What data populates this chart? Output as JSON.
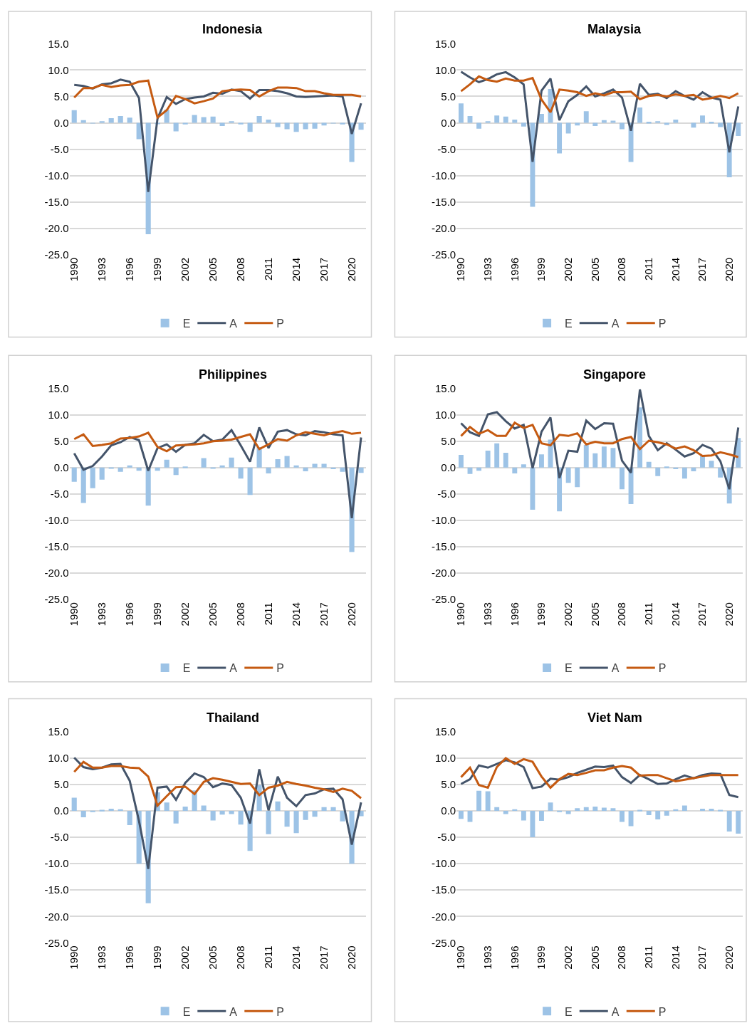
{
  "chart_data": [
    {
      "type": "line",
      "title": "Indonesia",
      "categories": [
        "1990",
        null,
        null,
        "1993",
        null,
        null,
        "1996",
        null,
        null,
        "1999",
        null,
        null,
        "2002",
        null,
        null,
        "2005",
        null,
        null,
        "2008",
        null,
        null,
        "2011",
        null,
        null,
        "2014",
        null,
        null,
        "2017",
        null,
        null,
        "2020",
        null
      ],
      "ylim": [
        -25,
        15
      ],
      "yticks": [
        {
          "value": -25,
          "label": "-25.0"
        },
        {
          "value": -20,
          "label": "-20.0"
        },
        {
          "value": -15,
          "label": "-15.0"
        },
        {
          "value": -10,
          "label": "-10.0"
        },
        {
          "value": -5,
          "label": "-5.0"
        },
        {
          "value": 0,
          "label": "0.0"
        },
        {
          "value": 5,
          "label": "5.0"
        },
        {
          "value": 10,
          "label": "10.0"
        },
        {
          "value": 15,
          "label": "15.0"
        }
      ],
      "grid": "y",
      "legend": "bottom",
      "series": [
        {
          "name": "E",
          "type": "bar",
          "color": "#9dc3e6",
          "values": [
            2.4,
            0.5,
            -0.1,
            0.3,
            0.9,
            1.3,
            1.0,
            -3.1,
            -21.1,
            -0.2,
            2.5,
            -1.6,
            -0.3,
            1.5,
            1.1,
            1.2,
            -0.6,
            0.3,
            -0.3,
            -1.7,
            1.3,
            0.6,
            -0.8,
            -1.2,
            -1.7,
            -1.2,
            -1.1,
            -0.5,
            -0.1,
            -0.3,
            -7.4,
            -1.3
          ]
        },
        {
          "name": "A",
          "color": "#44546a",
          "values": [
            7.2,
            7.0,
            6.5,
            7.3,
            7.5,
            8.2,
            7.8,
            4.7,
            -13.1,
            0.8,
            4.9,
            3.6,
            4.5,
            4.8,
            5.0,
            5.7,
            5.5,
            6.3,
            6.0,
            4.6,
            6.2,
            6.2,
            6.0,
            5.6,
            5.0,
            4.9,
            5.0,
            5.1,
            5.2,
            5.0,
            -2.1,
            3.7
          ]
        },
        {
          "name": "P",
          "color": "#c55a11",
          "values": [
            4.8,
            6.6,
            6.6,
            7.2,
            6.8,
            7.1,
            7.2,
            7.8,
            8.0,
            1.0,
            2.4,
            5.1,
            4.5,
            3.7,
            4.1,
            4.6,
            6.0,
            6.2,
            6.3,
            6.2,
            5.0,
            6.0,
            6.7,
            6.7,
            6.6,
            6.0,
            6.0,
            5.6,
            5.3,
            5.3,
            5.3,
            5.0
          ]
        }
      ]
    },
    {
      "type": "line",
      "title": "Malaysia",
      "categories": [
        "1990",
        null,
        null,
        "1993",
        null,
        null,
        "1996",
        null,
        null,
        "1999",
        null,
        null,
        "2002",
        null,
        null,
        "2005",
        null,
        null,
        "2008",
        null,
        null,
        "2011",
        null,
        null,
        "2014",
        null,
        null,
        "2017",
        null,
        null,
        "2020",
        null
      ],
      "ylim": [
        -25,
        15
      ],
      "yticks": [
        {
          "value": -25,
          "label": "-25.0"
        },
        {
          "value": -20,
          "label": "-20.0"
        },
        {
          "value": -15,
          "label": "-15.0"
        },
        {
          "value": -10,
          "label": "-10.0"
        },
        {
          "value": -5,
          "label": "-5.0"
        },
        {
          "value": 0,
          "label": "0.0"
        },
        {
          "value": 5,
          "label": "5.0"
        },
        {
          "value": 10,
          "label": "10.0"
        },
        {
          "value": 15,
          "label": "15.0"
        }
      ],
      "grid": "y",
      "legend": "bottom",
      "series": [
        {
          "name": "E",
          "type": "bar",
          "color": "#9dc3e6",
          "values": [
            3.7,
            1.3,
            -1.1,
            0.3,
            1.4,
            1.2,
            0.6,
            -0.7,
            -15.9,
            1.7,
            6.4,
            -5.8,
            -2.0,
            -0.5,
            2.2,
            -0.6,
            0.5,
            0.4,
            -1.2,
            -7.4,
            2.9,
            0.2,
            0.3,
            -0.4,
            0.6,
            0.0,
            -0.9,
            1.4,
            0.2,
            -0.8,
            -10.3,
            -2.5
          ]
        },
        {
          "name": "A",
          "color": "#44546a",
          "values": [
            9.7,
            8.6,
            7.7,
            8.3,
            9.2,
            9.6,
            8.6,
            7.3,
            -7.4,
            6.1,
            8.4,
            0.5,
            4.1,
            5.3,
            6.9,
            5.0,
            5.6,
            6.3,
            4.8,
            -1.5,
            7.4,
            5.3,
            5.5,
            4.7,
            6.0,
            5.1,
            4.4,
            5.8,
            4.8,
            4.4,
            -5.6,
            3.1
          ]
        },
        {
          "name": "P",
          "color": "#c55a11",
          "values": [
            6.0,
            7.3,
            8.8,
            8.1,
            7.8,
            8.4,
            8.0,
            8.0,
            8.5,
            4.4,
            2.0,
            6.3,
            6.1,
            5.8,
            5.1,
            5.6,
            5.2,
            5.8,
            5.8,
            5.9,
            4.5,
            5.1,
            5.3,
            5.0,
            5.4,
            5.1,
            5.3,
            4.4,
            4.7,
            5.1,
            4.7,
            5.6
          ]
        }
      ]
    },
    {
      "type": "line",
      "title": "Philippines",
      "categories": [
        "1990",
        null,
        null,
        "1993",
        null,
        null,
        "1996",
        null,
        null,
        "1999",
        null,
        null,
        "2002",
        null,
        null,
        "2005",
        null,
        null,
        "2008",
        null,
        null,
        "2011",
        null,
        null,
        "2014",
        null,
        null,
        "2017",
        null,
        null,
        "2020",
        null
      ],
      "ylim": [
        -25,
        15
      ],
      "yticks": [
        {
          "value": -25,
          "label": "-25.0"
        },
        {
          "value": -20,
          "label": "-20.0"
        },
        {
          "value": -15,
          "label": "-15.0"
        },
        {
          "value": -10,
          "label": "-10.0"
        },
        {
          "value": -5,
          "label": "-5.0"
        },
        {
          "value": 0,
          "label": "0.0"
        },
        {
          "value": 5,
          "label": "5.0"
        },
        {
          "value": 10,
          "label": "10.0"
        },
        {
          "value": 15,
          "label": "15.0"
        }
      ],
      "grid": "y",
      "legend": "bottom",
      "series": [
        {
          "name": "E",
          "type": "bar",
          "color": "#9dc3e6",
          "values": [
            -2.7,
            -6.7,
            -3.9,
            -2.3,
            -0.2,
            -0.8,
            0.4,
            -0.6,
            -7.2,
            -0.6,
            1.5,
            -1.4,
            0.2,
            0.0,
            1.8,
            -0.2,
            0.4,
            1.9,
            -2.1,
            -5.2,
            3.9,
            -1.1,
            1.6,
            2.2,
            0.4,
            -0.7,
            0.7,
            0.7,
            -0.3,
            -0.8,
            -16.0,
            -1.0
          ]
        },
        {
          "name": "A",
          "color": "#44546a",
          "values": [
            2.7,
            -0.4,
            0.3,
            2.1,
            4.2,
            4.8,
            5.8,
            5.2,
            -0.6,
            3.7,
            4.4,
            3.0,
            4.3,
            4.6,
            6.2,
            5.0,
            5.3,
            7.1,
            4.2,
            1.1,
            7.6,
            3.7,
            6.8,
            7.1,
            6.3,
            6.1,
            6.9,
            6.7,
            6.3,
            6.1,
            -9.6,
            5.7
          ]
        },
        {
          "name": "P",
          "color": "#c55a11",
          "values": [
            5.4,
            6.3,
            4.1,
            4.3,
            4.6,
            5.5,
            5.6,
            5.9,
            6.6,
            3.9,
            3.1,
            4.2,
            4.3,
            4.4,
            4.6,
            5.0,
            5.1,
            5.3,
            5.8,
            6.3,
            3.5,
            4.4,
            5.4,
            5.1,
            6.1,
            6.7,
            6.4,
            6.1,
            6.6,
            6.9,
            6.4,
            6.6
          ]
        }
      ]
    },
    {
      "type": "line",
      "title": "Singapore",
      "categories": [
        "1990",
        null,
        null,
        "1993",
        null,
        null,
        "1996",
        null,
        null,
        "1999",
        null,
        null,
        "2002",
        null,
        null,
        "2005",
        null,
        null,
        "2008",
        null,
        null,
        "2011",
        null,
        null,
        "2014",
        null,
        null,
        "2017",
        null,
        null,
        "2020",
        null
      ],
      "ylim": [
        -25,
        15
      ],
      "yticks": [
        {
          "value": -25,
          "label": "-25.0"
        },
        {
          "value": -20,
          "label": "-20.0"
        },
        {
          "value": -15,
          "label": "-15.0"
        },
        {
          "value": -10,
          "label": "-10.0"
        },
        {
          "value": -5,
          "label": "-5.0"
        },
        {
          "value": 0,
          "label": "0.0"
        },
        {
          "value": 5,
          "label": "5.0"
        },
        {
          "value": 10,
          "label": "10.0"
        },
        {
          "value": 15,
          "label": "15.0"
        }
      ],
      "grid": "y",
      "legend": "bottom",
      "series": [
        {
          "name": "E",
          "type": "bar",
          "color": "#9dc3e6",
          "values": [
            2.4,
            -1.2,
            -0.6,
            3.2,
            4.6,
            2.8,
            -1.1,
            0.6,
            -8.0,
            2.5,
            5.3,
            -8.3,
            -2.9,
            -3.7,
            4.3,
            2.7,
            4.0,
            3.7,
            -4.1,
            -6.9,
            11.4,
            1.1,
            -1.6,
            0.2,
            -0.3,
            -2.1,
            -0.7,
            2.3,
            1.3,
            -1.9,
            -6.8,
            5.6
          ]
        },
        {
          "name": "A",
          "color": "#44546a",
          "values": [
            8.4,
            6.7,
            6.0,
            10.1,
            10.5,
            8.8,
            7.4,
            8.1,
            -0.1,
            6.8,
            9.5,
            -2.0,
            3.2,
            3.0,
            8.9,
            7.3,
            8.4,
            8.3,
            1.3,
            -1.0,
            14.8,
            6.0,
            3.3,
            4.6,
            3.4,
            2.1,
            2.7,
            4.3,
            3.6,
            1.2,
            -4.1,
            7.6
          ]
        },
        {
          "name": "P",
          "color": "#c55a11",
          "values": [
            6.0,
            7.7,
            6.4,
            7.1,
            6.0,
            6.0,
            8.5,
            7.5,
            8.1,
            4.6,
            4.2,
            6.2,
            6.0,
            6.5,
            4.4,
            4.9,
            4.6,
            4.6,
            5.4,
            5.8,
            3.5,
            5.1,
            4.8,
            4.4,
            3.6,
            4.0,
            3.3,
            2.2,
            2.3,
            2.9,
            2.5,
            2.0
          ]
        }
      ]
    },
    {
      "type": "line",
      "title": "Thailand",
      "categories": [
        "1990",
        null,
        null,
        "1993",
        null,
        null,
        "1996",
        null,
        null,
        "1999",
        null,
        null,
        "2002",
        null,
        null,
        "2005",
        null,
        null,
        "2008",
        null,
        null,
        "2011",
        null,
        null,
        "2014",
        null,
        null,
        "2017",
        null,
        null,
        "2020",
        null
      ],
      "ylim": [
        -25,
        15
      ],
      "yticks": [
        {
          "value": -25,
          "label": "-25.0"
        },
        {
          "value": -20,
          "label": "-20.0"
        },
        {
          "value": -15,
          "label": "-15.0"
        },
        {
          "value": -10,
          "label": "-10.0"
        },
        {
          "value": -5,
          "label": "-5.0"
        },
        {
          "value": 0,
          "label": "0.0"
        },
        {
          "value": 5,
          "label": "5.0"
        },
        {
          "value": 10,
          "label": "10.0"
        },
        {
          "value": 15,
          "label": "15.0"
        }
      ],
      "grid": "y",
      "legend": "bottom",
      "series": [
        {
          "name": "E",
          "type": "bar",
          "color": "#9dc3e6",
          "values": [
            2.5,
            -1.2,
            -0.2,
            0.2,
            0.4,
            0.3,
            -2.7,
            -10.0,
            -17.5,
            3.5,
            1.6,
            -2.4,
            0.8,
            3.9,
            1.0,
            -1.8,
            -0.7,
            -0.6,
            -2.6,
            -7.6,
            4.9,
            -4.4,
            1.8,
            -3.0,
            -4.2,
            -1.7,
            -1.1,
            0.7,
            0.7,
            -2.0,
            -10.0,
            -1.0
          ]
        },
        {
          "name": "A",
          "color": "#44546a",
          "values": [
            10.1,
            8.3,
            7.9,
            8.2,
            8.8,
            8.9,
            5.7,
            -1.9,
            -11.0,
            4.4,
            4.6,
            2.1,
            5.3,
            7.1,
            6.4,
            4.5,
            5.2,
            4.9,
            2.5,
            -2.4,
            7.9,
            0.1,
            6.5,
            2.5,
            0.9,
            3.0,
            3.3,
            4.1,
            4.2,
            2.2,
            -6.4,
            1.6
          ]
        },
        {
          "name": "P",
          "color": "#c55a11",
          "values": [
            7.4,
            9.3,
            8.2,
            8.2,
            8.5,
            8.5,
            8.2,
            8.1,
            6.5,
            1.0,
            2.8,
            4.5,
            4.6,
            3.2,
            5.5,
            6.2,
            5.9,
            5.5,
            5.1,
            5.2,
            3.0,
            4.4,
            4.8,
            5.5,
            5.1,
            4.8,
            4.4,
            4.1,
            3.6,
            4.2,
            3.8,
            2.4
          ]
        }
      ]
    },
    {
      "type": "line",
      "title": "Viet Nam",
      "categories": [
        "1990",
        null,
        null,
        "1993",
        null,
        null,
        "1996",
        null,
        null,
        "1999",
        null,
        null,
        "2002",
        null,
        null,
        "2005",
        null,
        null,
        "2008",
        null,
        null,
        "2011",
        null,
        null,
        "2014",
        null,
        null,
        "2017",
        null,
        null,
        "2020",
        null
      ],
      "ylim": [
        -25,
        15
      ],
      "yticks": [
        {
          "value": -25,
          "label": "-25.0"
        },
        {
          "value": -20,
          "label": "-20.0"
        },
        {
          "value": -15,
          "label": "-15.0"
        },
        {
          "value": -10,
          "label": "-10.0"
        },
        {
          "value": -5,
          "label": "-5.0"
        },
        {
          "value": 0,
          "label": "0.0"
        },
        {
          "value": 5,
          "label": "5.0"
        },
        {
          "value": 10,
          "label": "10.0"
        },
        {
          "value": 15,
          "label": "15.0"
        }
      ],
      "grid": "y",
      "legend": "bottom",
      "series": [
        {
          "name": "E",
          "type": "bar",
          "color": "#9dc3e6",
          "values": [
            -1.5,
            -2.1,
            3.8,
            3.7,
            0.7,
            -0.6,
            0.3,
            -1.8,
            -5.0,
            -1.9,
            1.6,
            -0.2,
            -0.6,
            0.5,
            0.7,
            0.8,
            0.6,
            0.5,
            -2.1,
            -2.9,
            0.2,
            -0.8,
            -1.6,
            -0.9,
            0.3,
            1.0,
            0.0,
            0.4,
            0.4,
            0.2,
            -3.9,
            -4.3
          ]
        },
        {
          "name": "A",
          "color": "#44546a",
          "values": [
            5.1,
            6.0,
            8.6,
            8.2,
            8.9,
            9.6,
            9.2,
            8.3,
            4.3,
            4.6,
            6.1,
            5.9,
            6.4,
            7.2,
            7.8,
            8.4,
            8.3,
            8.6,
            6.4,
            5.3,
            6.8,
            6.0,
            5.1,
            5.2,
            6.0,
            6.7,
            6.2,
            6.8,
            7.1,
            7.0,
            3.0,
            2.6
          ]
        },
        {
          "name": "P",
          "color": "#c55a11",
          "values": [
            6.4,
            8.2,
            4.9,
            4.4,
            8.3,
            10.0,
            8.9,
            9.8,
            9.3,
            6.5,
            4.4,
            6.0,
            7.0,
            6.8,
            7.2,
            7.7,
            7.7,
            8.2,
            8.5,
            8.2,
            6.7,
            6.8,
            6.8,
            6.2,
            5.6,
            5.9,
            6.2,
            6.5,
            6.8,
            6.8,
            6.8,
            6.8
          ]
        }
      ]
    }
  ]
}
